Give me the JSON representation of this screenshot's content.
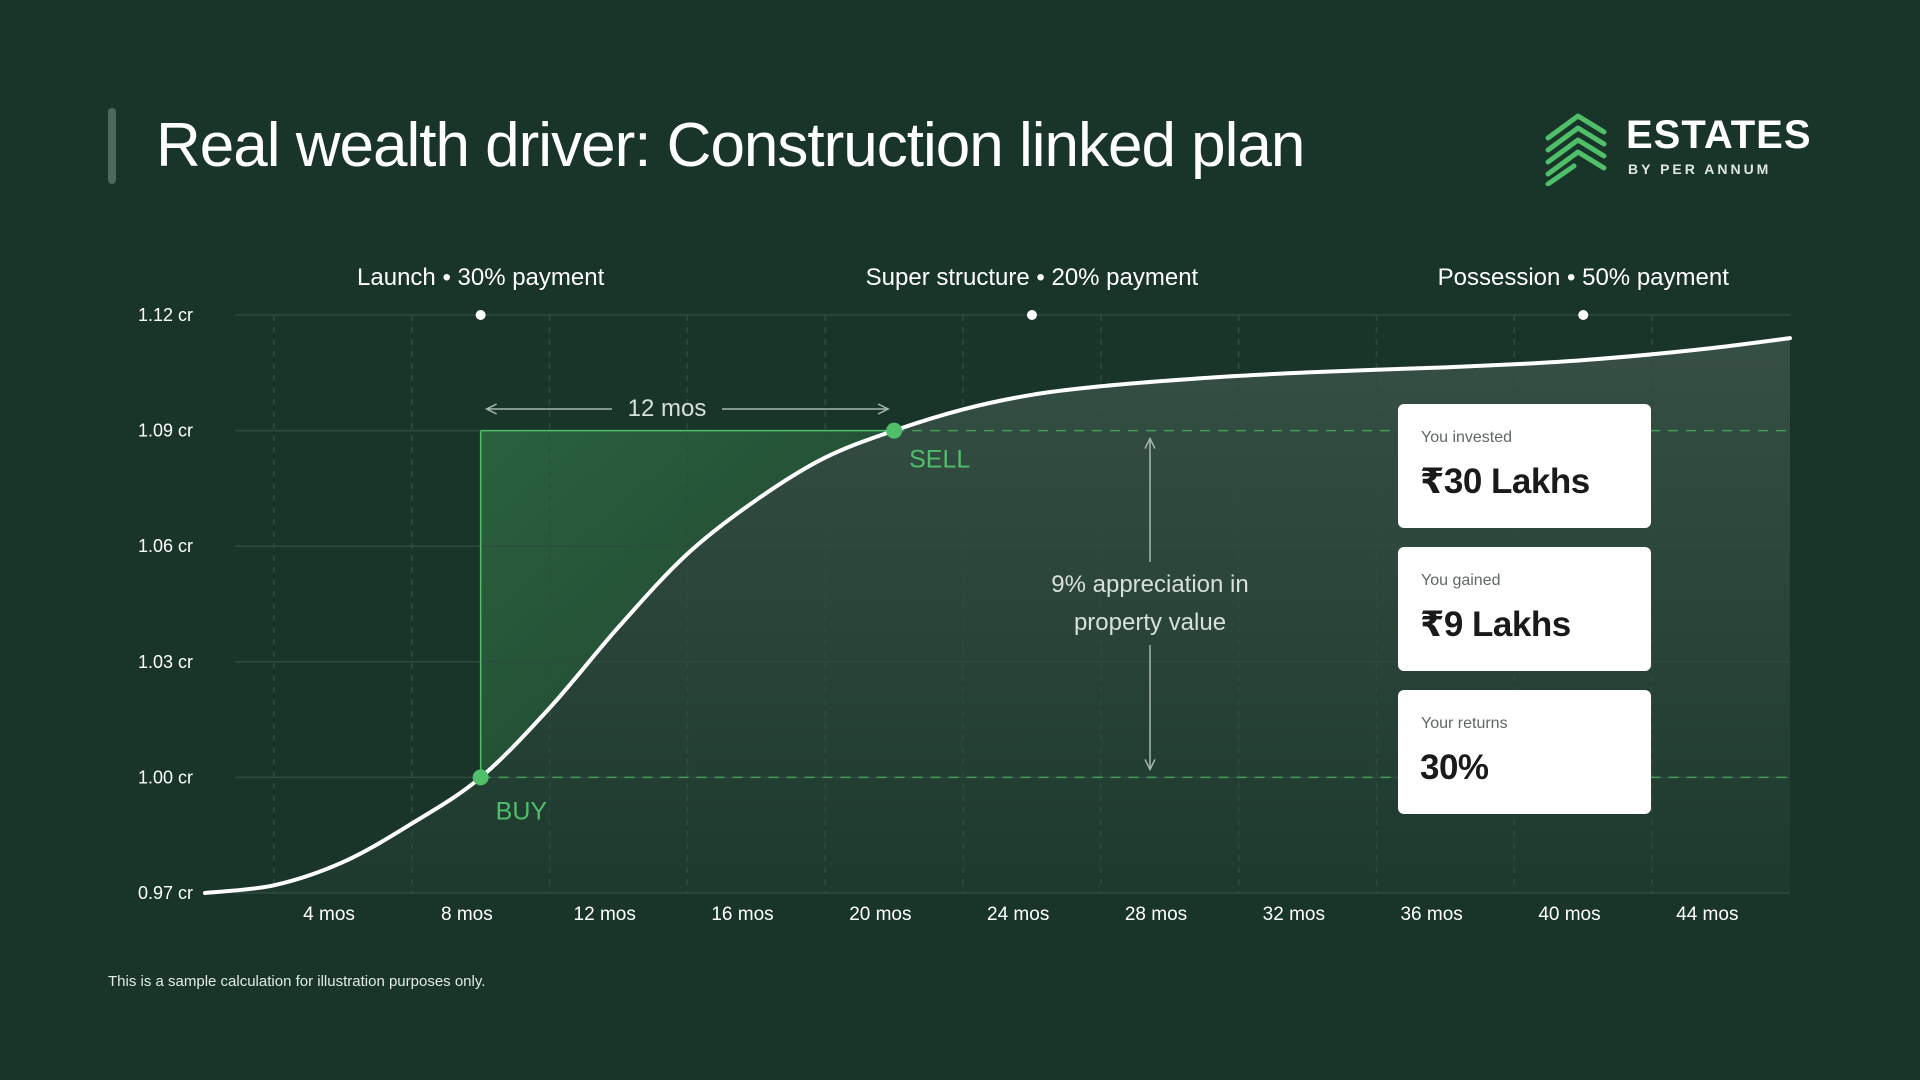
{
  "header": {
    "title": "Real wealth driver: Construction linked plan"
  },
  "brand": {
    "name": "ESTATES",
    "tagline": "BY PER ANNUM",
    "icon": "stacked-chevron-logo-icon",
    "color": "#4fbf6a"
  },
  "chart_data": {
    "type": "line",
    "title": "Real wealth driver: Construction linked plan",
    "xlabel": "",
    "ylabel": "",
    "x_ticks": [
      4,
      8,
      12,
      16,
      20,
      24,
      28,
      32,
      36,
      40,
      44
    ],
    "x_tick_labels": [
      "4 mos",
      "8 mos",
      "12 mos",
      "16 mos",
      "20 mos",
      "24 mos",
      "28 mos",
      "32 mos",
      "36 mos",
      "40 mos",
      "44 mos"
    ],
    "y_ticks": [
      0.97,
      1.0,
      1.03,
      1.06,
      1.09,
      1.12
    ],
    "y_tick_labels": [
      "0.97 cr",
      "1.00 cr",
      "1.03 cr",
      "1.06 cr",
      "1.09 cr",
      "1.12 cr"
    ],
    "xlim": [
      0,
      46
    ],
    "ylim": [
      0.97,
      1.12
    ],
    "grid": true,
    "series": [
      {
        "name": "Property value",
        "x": [
          0,
          2,
          4,
          6,
          8,
          10,
          12,
          14,
          16,
          18,
          20,
          22,
          24,
          26,
          28,
          30,
          32,
          34,
          36,
          38,
          40,
          42,
          44,
          46
        ],
        "values": [
          0.97,
          0.972,
          0.978,
          0.988,
          1.0,
          1.018,
          1.039,
          1.058,
          1.072,
          1.083,
          1.09,
          1.0955,
          1.0993,
          1.1015,
          1.103,
          1.1042,
          1.1051,
          1.1058,
          1.1064,
          1.1072,
          1.1083,
          1.1098,
          1.1117,
          1.114
        ]
      }
    ],
    "milestones": [
      {
        "x": 8,
        "label": "Launch • 30% payment"
      },
      {
        "x": 24,
        "label": "Super structure • 20% payment"
      },
      {
        "x": 40,
        "label": "Possession • 50% payment"
      }
    ],
    "points": [
      {
        "x": 8,
        "y": 1.0,
        "label": "BUY"
      },
      {
        "x": 20,
        "y": 1.09,
        "label": "SELL"
      }
    ],
    "annotations": {
      "holding_period": "12 mos",
      "appreciation": [
        "9% appreciation in",
        "property value"
      ]
    },
    "colors": {
      "line": "#ffffff",
      "highlight": "#4fbf6a",
      "grid": "#2e4b3e"
    }
  },
  "cards": [
    {
      "label": "You invested",
      "value": "₹30 Lakhs"
    },
    {
      "label": "You gained",
      "value": "₹9 Lakhs"
    },
    {
      "label": "Your returns",
      "value": "30%"
    }
  ],
  "footnote": "This is a sample calculation for illustration purposes only."
}
